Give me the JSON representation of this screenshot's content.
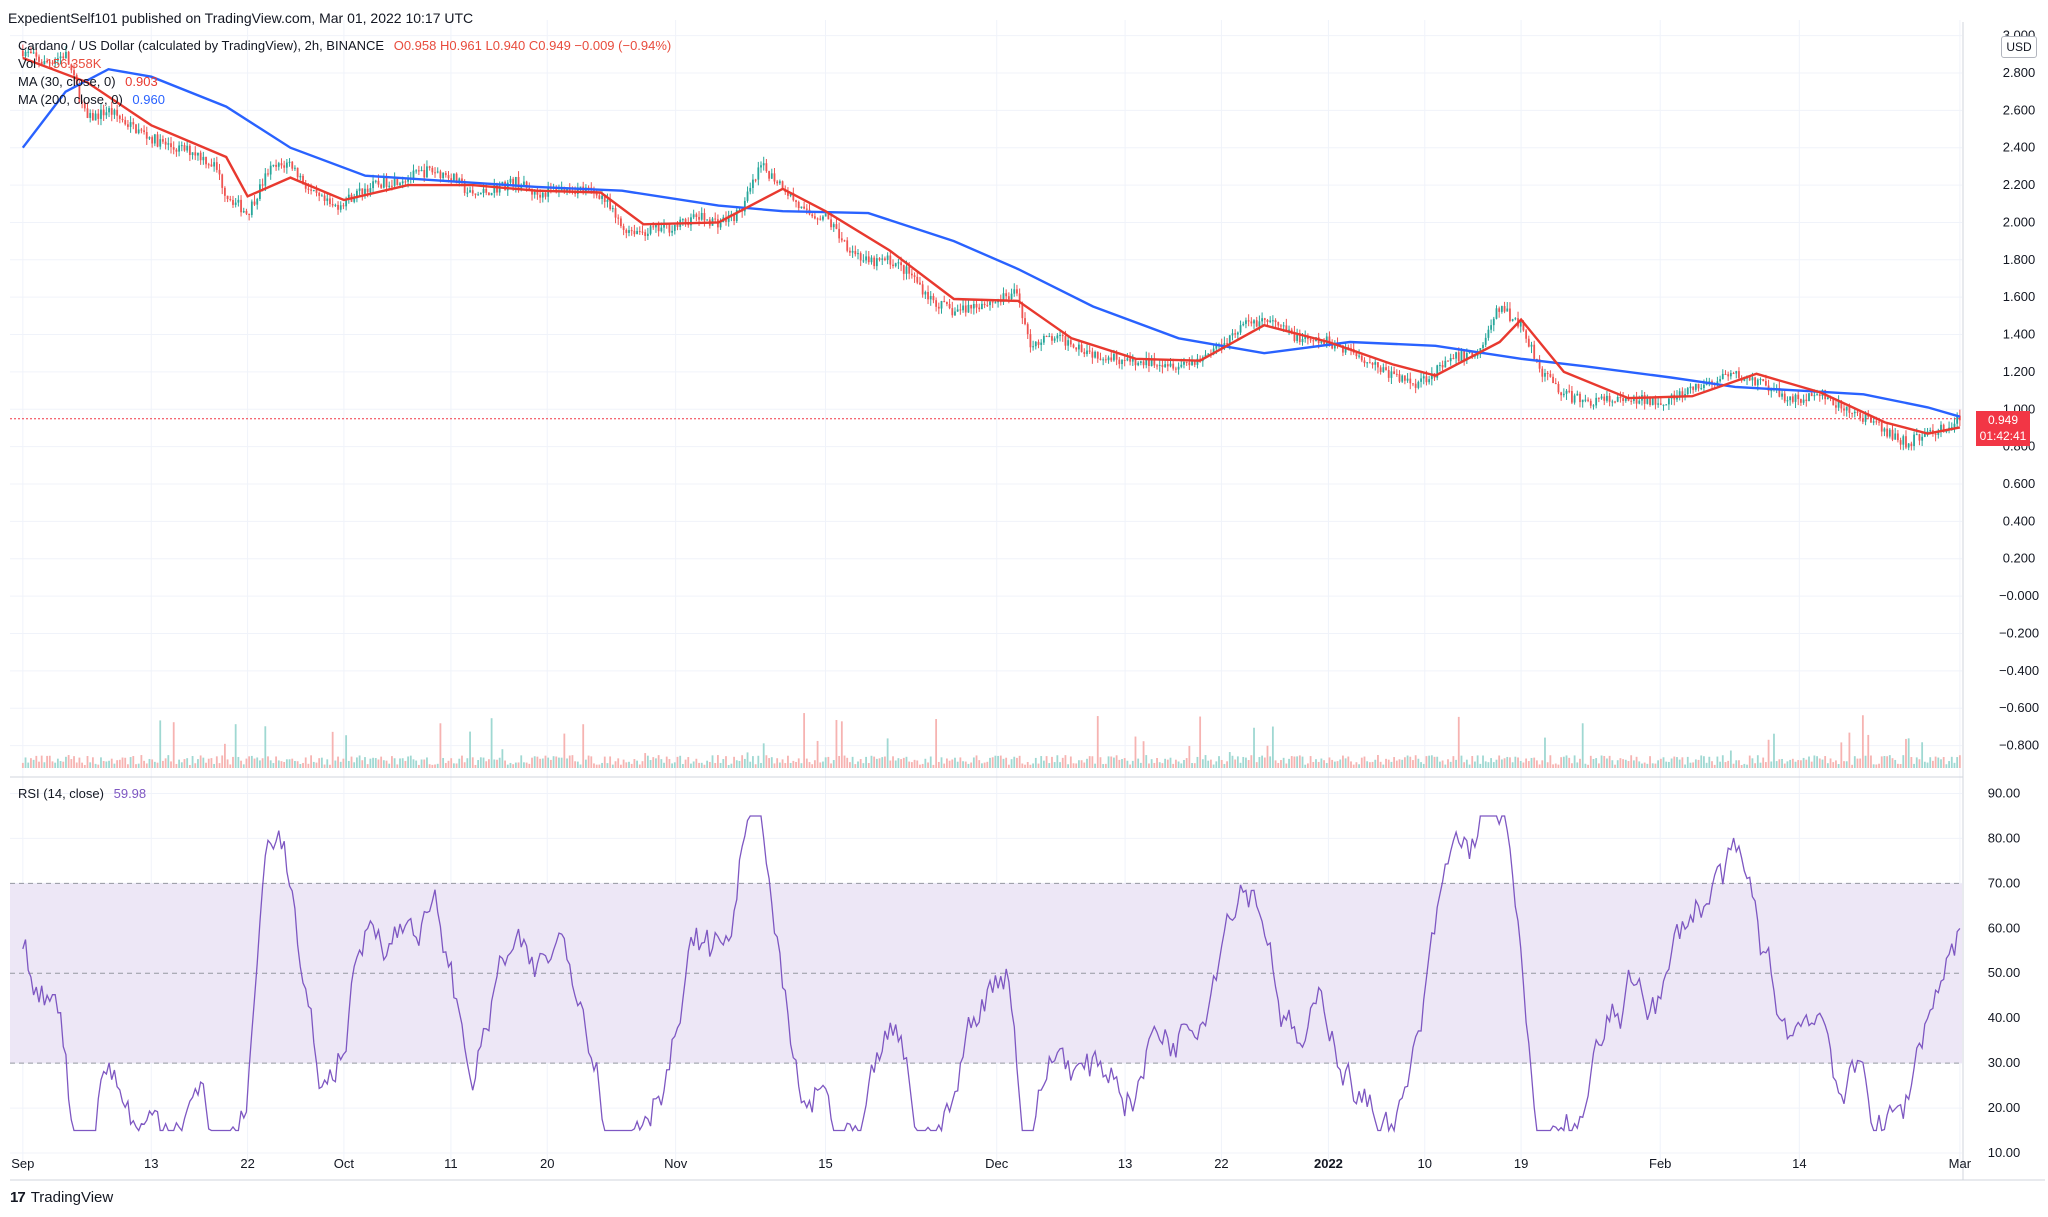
{
  "publisher": "ExpedientSelf101 published on TradingView.com, Mar 01, 2022 10:17 UTC",
  "legend": {
    "symbol": "Cardano / US Dollar (calculated by TradingView), 2h, BINANCE",
    "ohlc": "O0.958  H0.961  L0.940  C0.949  −0.009 (−0.94%)",
    "vol_label": "Vol",
    "vol_value": "156.358K",
    "ma30_label": "MA (30, close, 0)",
    "ma30_value": "0.903",
    "ma200_label": "MA (200, close, 0)",
    "ma200_value": "0.960",
    "rsi_label": "RSI (14, close)",
    "rsi_value": "59.98"
  },
  "currency": "USD",
  "last_price": {
    "price": "0.949",
    "countdown": "01:42:41"
  },
  "brand": "TradingView",
  "colors": {
    "up": "#26a69a",
    "down": "#ef5350",
    "ma30": "#e8392f",
    "ma200": "#2962ff",
    "rsi": "#7e57c2",
    "rsi_band": "#ede7f6"
  },
  "chart_data": [
    {
      "type": "candlestick",
      "title": "Cardano / US Dollar (calculated by TradingView), 2h, BINANCE",
      "x_ticks": [
        "Sep",
        "13",
        "22",
        "Oct",
        "11",
        "20",
        "Nov",
        "15",
        "Dec",
        "13",
        "22",
        "2022",
        "10",
        "19",
        "Feb",
        "14",
        "Mar"
      ],
      "y_ticks": [
        "3.000",
        "2.800",
        "2.600",
        "2.400",
        "2.200",
        "2.000",
        "1.800",
        "1.600",
        "1.400",
        "1.200",
        "1.000",
        "0.800",
        "0.600",
        "0.400",
        "0.200",
        "−0.000",
        "−0.200",
        "−0.400",
        "−0.600",
        "−0.800"
      ],
      "ylim": [
        -0.92,
        3.03
      ],
      "series": [
        {
          "name": "Cardano / US Dollar",
          "type": "price",
          "points": [
            [
              "Sep 01",
              2.92
            ],
            [
              "Sep 03",
              2.85
            ],
            [
              "Sep 05",
              2.9
            ],
            [
              "Sep 07",
              2.55
            ],
            [
              "Sep 09",
              2.6
            ],
            [
              "Sep 11",
              2.52
            ],
            [
              "Sep 13",
              2.45
            ],
            [
              "Sep 15",
              2.4
            ],
            [
              "Sep 17",
              2.38
            ],
            [
              "Sep 19",
              2.3
            ],
            [
              "Sep 20",
              2.15
            ],
            [
              "Sep 22",
              2.05
            ],
            [
              "Sep 24",
              2.28
            ],
            [
              "Sep 26",
              2.32
            ],
            [
              "Sep 28",
              2.15
            ],
            [
              "Sep 30",
              2.08
            ],
            [
              "Oct 03",
              2.18
            ],
            [
              "Oct 05",
              2.22
            ],
            [
              "Oct 07",
              2.24
            ],
            [
              "Oct 09",
              2.28
            ],
            [
              "Oct 11",
              2.25
            ],
            [
              "Oct 13",
              2.14
            ],
            [
              "Oct 15",
              2.18
            ],
            [
              "Oct 17",
              2.22
            ],
            [
              "Oct 19",
              2.15
            ],
            [
              "Oct 21",
              2.18
            ],
            [
              "Oct 23",
              2.18
            ],
            [
              "Oct 25",
              2.15
            ],
            [
              "Oct 27",
              1.97
            ],
            [
              "Oct 29",
              1.95
            ],
            [
              "Nov 01",
              1.98
            ],
            [
              "Nov 03",
              2.03
            ],
            [
              "Nov 05",
              2.0
            ],
            [
              "Nov 07",
              2.05
            ],
            [
              "Nov 09",
              2.3
            ],
            [
              "Nov 11",
              2.2
            ],
            [
              "Nov 13",
              2.05
            ],
            [
              "Nov 15",
              2.03
            ],
            [
              "Nov 17",
              1.88
            ],
            [
              "Nov 19",
              1.78
            ],
            [
              "Nov 21",
              1.8
            ],
            [
              "Nov 23",
              1.72
            ],
            [
              "Nov 25",
              1.58
            ],
            [
              "Nov 27",
              1.52
            ],
            [
              "Nov 29",
              1.56
            ],
            [
              "Dec 01",
              1.58
            ],
            [
              "Dec 03",
              1.62
            ],
            [
              "Dec 04",
              1.35
            ],
            [
              "Dec 06",
              1.38
            ],
            [
              "Dec 08",
              1.36
            ],
            [
              "Dec 10",
              1.3
            ],
            [
              "Dec 12",
              1.28
            ],
            [
              "Dec 14",
              1.24
            ],
            [
              "Dec 16",
              1.26
            ],
            [
              "Dec 18",
              1.24
            ],
            [
              "Dec 20",
              1.27
            ],
            [
              "Dec 22",
              1.35
            ],
            [
              "Dec 24",
              1.45
            ],
            [
              "Dec 26",
              1.48
            ],
            [
              "Dec 28",
              1.42
            ],
            [
              "Dec 30",
              1.36
            ],
            [
              "Jan 01",
              1.36
            ],
            [
              "Jan 03",
              1.32
            ],
            [
              "Jan 05",
              1.25
            ],
            [
              "Jan 07",
              1.18
            ],
            [
              "Jan 09",
              1.14
            ],
            [
              "Jan 11",
              1.2
            ],
            [
              "Jan 13",
              1.28
            ],
            [
              "Jan 15",
              1.3
            ],
            [
              "Jan 17",
              1.55
            ],
            [
              "Jan 19",
              1.45
            ],
            [
              "Jan 21",
              1.2
            ],
            [
              "Jan 23",
              1.08
            ],
            [
              "Jan 25",
              1.04
            ],
            [
              "Jan 27",
              1.05
            ],
            [
              "Jan 29",
              1.04
            ],
            [
              "Jan 31",
              1.05
            ],
            [
              "Feb 02",
              1.05
            ],
            [
              "Feb 04",
              1.1
            ],
            [
              "Feb 06",
              1.15
            ],
            [
              "Feb 08",
              1.18
            ],
            [
              "Feb 10",
              1.15
            ],
            [
              "Feb 12",
              1.08
            ],
            [
              "Feb 14",
              1.05
            ],
            [
              "Feb 16",
              1.08
            ],
            [
              "Feb 18",
              1.0
            ],
            [
              "Feb 20",
              0.96
            ],
            [
              "Feb 22",
              0.88
            ],
            [
              "Feb 24",
              0.82
            ],
            [
              "Feb 26",
              0.87
            ],
            [
              "Feb 28",
              0.91
            ],
            [
              "Mar 01",
              0.949
            ]
          ]
        },
        {
          "name": "MA (30, close, 0)",
          "type": "line",
          "points": [
            [
              "Sep 01",
              2.88
            ],
            [
              "Sep 07",
              2.75
            ],
            [
              "Sep 13",
              2.52
            ],
            [
              "Sep 20",
              2.35
            ],
            [
              "Sep 22",
              2.14
            ],
            [
              "Sep 26",
              2.24
            ],
            [
              "Oct 01",
              2.12
            ],
            [
              "Oct 07",
              2.2
            ],
            [
              "Oct 13",
              2.2
            ],
            [
              "Oct 19",
              2.17
            ],
            [
              "Oct 25",
              2.16
            ],
            [
              "Oct 29",
              1.99
            ],
            [
              "Nov 05",
              2.0
            ],
            [
              "Nov 11",
              2.18
            ],
            [
              "Nov 15",
              2.06
            ],
            [
              "Nov 21",
              1.85
            ],
            [
              "Nov 27",
              1.59
            ],
            [
              "Dec 03",
              1.58
            ],
            [
              "Dec 08",
              1.38
            ],
            [
              "Dec 14",
              1.27
            ],
            [
              "Dec 20",
              1.26
            ],
            [
              "Dec 26",
              1.45
            ],
            [
              "Jan 01",
              1.36
            ],
            [
              "Jan 07",
              1.24
            ],
            [
              "Jan 11",
              1.18
            ],
            [
              "Jan 17",
              1.36
            ],
            [
              "Jan 19",
              1.48
            ],
            [
              "Jan 23",
              1.2
            ],
            [
              "Jan 29",
              1.06
            ],
            [
              "Feb 04",
              1.07
            ],
            [
              "Feb 10",
              1.19
            ],
            [
              "Feb 16",
              1.09
            ],
            [
              "Feb 22",
              0.93
            ],
            [
              "Feb 26",
              0.87
            ],
            [
              "Mar 01",
              0.903
            ]
          ]
        },
        {
          "name": "MA (200, close, 0)",
          "type": "line",
          "points": [
            [
              "Sep 01",
              2.4
            ],
            [
              "Sep 05",
              2.7
            ],
            [
              "Sep 09",
              2.82
            ],
            [
              "Sep 13",
              2.78
            ],
            [
              "Sep 20",
              2.62
            ],
            [
              "Sep 26",
              2.4
            ],
            [
              "Oct 03",
              2.25
            ],
            [
              "Oct 11",
              2.22
            ],
            [
              "Oct 19",
              2.19
            ],
            [
              "Oct 27",
              2.17
            ],
            [
              "Nov 05",
              2.09
            ],
            [
              "Nov 11",
              2.06
            ],
            [
              "Nov 19",
              2.05
            ],
            [
              "Nov 27",
              1.9
            ],
            [
              "Dec 03",
              1.75
            ],
            [
              "Dec 10",
              1.55
            ],
            [
              "Dec 18",
              1.38
            ],
            [
              "Dec 26",
              1.3
            ],
            [
              "Jan 03",
              1.36
            ],
            [
              "Jan 11",
              1.34
            ],
            [
              "Jan 19",
              1.27
            ],
            [
              "Jan 25",
              1.23
            ],
            [
              "Feb 02",
              1.17
            ],
            [
              "Feb 08",
              1.12
            ],
            [
              "Feb 14",
              1.1
            ],
            [
              "Feb 20",
              1.08
            ],
            [
              "Feb 26",
              1.01
            ],
            [
              "Mar 01",
              0.96
            ]
          ]
        }
      ],
      "last_close": 0.949
    },
    {
      "type": "line",
      "title": "RSI (14, close)",
      "y_ticks": [
        "90.00",
        "80.00",
        "70.00",
        "60.00",
        "50.00",
        "40.00",
        "30.00",
        "20.00",
        "10.00"
      ],
      "ylim": [
        8,
        93
      ],
      "band": [
        30,
        70
      ],
      "midline": 50,
      "series": [
        {
          "name": "RSI (14, close)",
          "last": 59.98
        }
      ]
    }
  ]
}
